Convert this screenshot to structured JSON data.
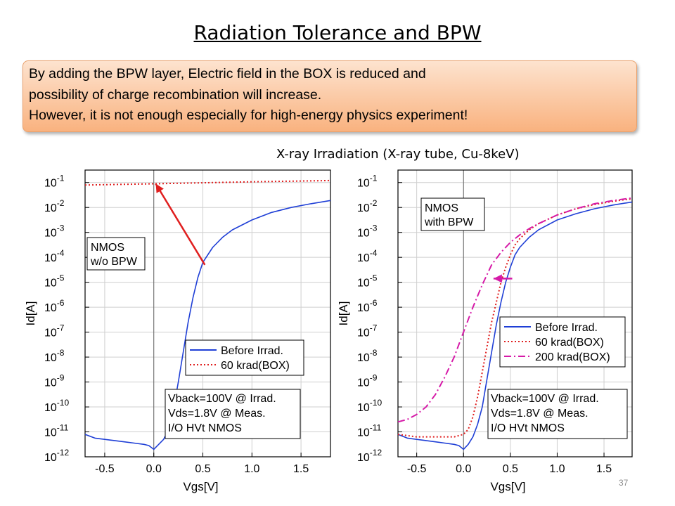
{
  "slide": {
    "title": "Radiation Tolerance and BPW",
    "callout": [
      "By adding the BPW layer, Electric field in the BOX is reduced and",
      "possibility of charge recombination will increase.",
      "However, it is not enough especially for high-energy physics experiment!"
    ],
    "subtitle": "X-ray Irradiation (X-ray tube, Cu-8keV)",
    "page_number": "37"
  },
  "colors": {
    "blue": "#1f3fd6",
    "red": "#e01f1f",
    "magenta": "#d61aa8",
    "callout": "#f9b27f"
  },
  "chart_data": [
    {
      "type": "line",
      "title": "",
      "xlabel": "Vgs[V]",
      "ylabel": "Id[A]",
      "xlim": [
        -0.7,
        1.8
      ],
      "ylim": [
        -12,
        -0.5
      ],
      "y_scale": "log",
      "x_ticks": [
        -0.5,
        0.0,
        0.5,
        1.0,
        1.5
      ],
      "x_tick_labels": [
        "-0.5",
        "0.0",
        "0.5",
        "1.0",
        "1.5"
      ],
      "y_tick_exponents": [
        -1,
        -2,
        -3,
        -4,
        -5,
        -6,
        -7,
        -8,
        -9,
        -10,
        -11,
        -12
      ],
      "grid": true,
      "annotation": [
        "NMOS",
        "w/o BPW"
      ],
      "conditions": [
        "Vback=100V @ Irrad.",
        "Vds=1.8V @ Meas.",
        "I/O HVt NMOS"
      ],
      "legend_position": "bottom-right",
      "arrow": {
        "from": [
          0.52,
          -4.3
        ],
        "to": [
          0.02,
          -1.05
        ]
      },
      "series": [
        {
          "name": "Before Irrad.",
          "color": "#1f3fd6",
          "style": "solid",
          "x": [
            -0.7,
            -0.6,
            -0.5,
            -0.4,
            -0.3,
            -0.2,
            -0.1,
            -0.05,
            0.0,
            0.05,
            0.1,
            0.15,
            0.2,
            0.25,
            0.3,
            0.35,
            0.4,
            0.45,
            0.5,
            0.6,
            0.7,
            0.8,
            1.0,
            1.2,
            1.4,
            1.6,
            1.8
          ],
          "y": [
            -11.1,
            -11.25,
            -11.3,
            -11.35,
            -11.4,
            -11.45,
            -11.5,
            -11.55,
            -11.7,
            -11.5,
            -11.3,
            -10.9,
            -10.1,
            -9.0,
            -7.8,
            -6.6,
            -5.6,
            -4.8,
            -4.2,
            -3.6,
            -3.2,
            -2.9,
            -2.5,
            -2.2,
            -2.0,
            -1.85,
            -1.72
          ]
        },
        {
          "name": "60 krad(BOX)",
          "color": "#e01f1f",
          "style": "dotted",
          "x": [
            -0.7,
            0.0,
            1.0,
            1.8
          ],
          "y": [
            -1.1,
            -1.05,
            -0.97,
            -0.92
          ]
        }
      ]
    },
    {
      "type": "line",
      "title": "",
      "xlabel": "Vgs[V]",
      "ylabel": "Id[A]",
      "xlim": [
        -0.7,
        1.8
      ],
      "ylim": [
        -12,
        -0.5
      ],
      "y_scale": "log",
      "x_ticks": [
        -0.5,
        0.0,
        0.5,
        1.0,
        1.5
      ],
      "x_tick_labels": [
        "-0.5",
        "0.0",
        "0.5",
        "1.0",
        "1.5"
      ],
      "y_tick_exponents": [
        -1,
        -2,
        -3,
        -4,
        -5,
        -6,
        -7,
        -8,
        -9,
        -10,
        -11,
        -12
      ],
      "grid": true,
      "annotation": [
        "NMOS",
        "with BPW"
      ],
      "conditions": [
        "Vback=100V @ Irrad.",
        "Vds=1.8V @ Meas.",
        "I/O HVt NMOS"
      ],
      "legend_position": "bottom-right",
      "arrow": {
        "from": [
          0.52,
          -4.85
        ],
        "to": [
          0.32,
          -4.85
        ]
      },
      "series": [
        {
          "name": "Before Irrad.",
          "color": "#1f3fd6",
          "style": "solid",
          "x": [
            -0.7,
            -0.6,
            -0.5,
            -0.4,
            -0.3,
            -0.2,
            -0.1,
            -0.05,
            0.0,
            0.05,
            0.1,
            0.15,
            0.2,
            0.25,
            0.3,
            0.35,
            0.4,
            0.45,
            0.5,
            0.55,
            0.6,
            0.7,
            0.8,
            1.0,
            1.2,
            1.4,
            1.6,
            1.8
          ],
          "y": [
            -11.1,
            -11.25,
            -11.3,
            -11.35,
            -11.4,
            -11.45,
            -11.5,
            -11.55,
            -11.7,
            -11.5,
            -11.2,
            -10.7,
            -10.0,
            -8.9,
            -7.8,
            -6.7,
            -5.8,
            -5.0,
            -4.4,
            -3.9,
            -3.6,
            -3.2,
            -2.9,
            -2.5,
            -2.25,
            -2.05,
            -1.9,
            -1.78
          ]
        },
        {
          "name": "60 krad(BOX)",
          "color": "#e01f1f",
          "style": "dotted",
          "x": [
            -0.7,
            -0.5,
            -0.3,
            -0.1,
            0.0,
            0.05,
            0.1,
            0.15,
            0.2,
            0.25,
            0.3,
            0.35,
            0.4,
            0.45,
            0.5,
            0.55,
            0.6,
            0.7,
            0.8,
            1.0,
            1.2,
            1.4,
            1.6,
            1.8
          ],
          "y": [
            -11.1,
            -11.2,
            -11.2,
            -11.2,
            -11.1,
            -10.9,
            -10.4,
            -9.6,
            -8.6,
            -7.6,
            -6.6,
            -5.8,
            -5.0,
            -4.4,
            -3.9,
            -3.5,
            -3.25,
            -2.9,
            -2.65,
            -2.3,
            -2.05,
            -1.88,
            -1.75,
            -1.65
          ]
        },
        {
          "name": "200 krad(BOX)",
          "color": "#d61aa8",
          "style": "dashdot",
          "x": [
            -0.7,
            -0.6,
            -0.5,
            -0.4,
            -0.3,
            -0.2,
            -0.1,
            0.0,
            0.1,
            0.2,
            0.3,
            0.4,
            0.5,
            0.6,
            0.7,
            0.8,
            1.0,
            1.2,
            1.4,
            1.6,
            1.8
          ],
          "y": [
            -10.6,
            -10.5,
            -10.3,
            -10.0,
            -9.5,
            -8.8,
            -8.0,
            -7.0,
            -6.0,
            -5.1,
            -4.3,
            -3.8,
            -3.4,
            -3.1,
            -2.85,
            -2.65,
            -2.3,
            -2.05,
            -1.85,
            -1.72,
            -1.62
          ]
        }
      ]
    }
  ]
}
